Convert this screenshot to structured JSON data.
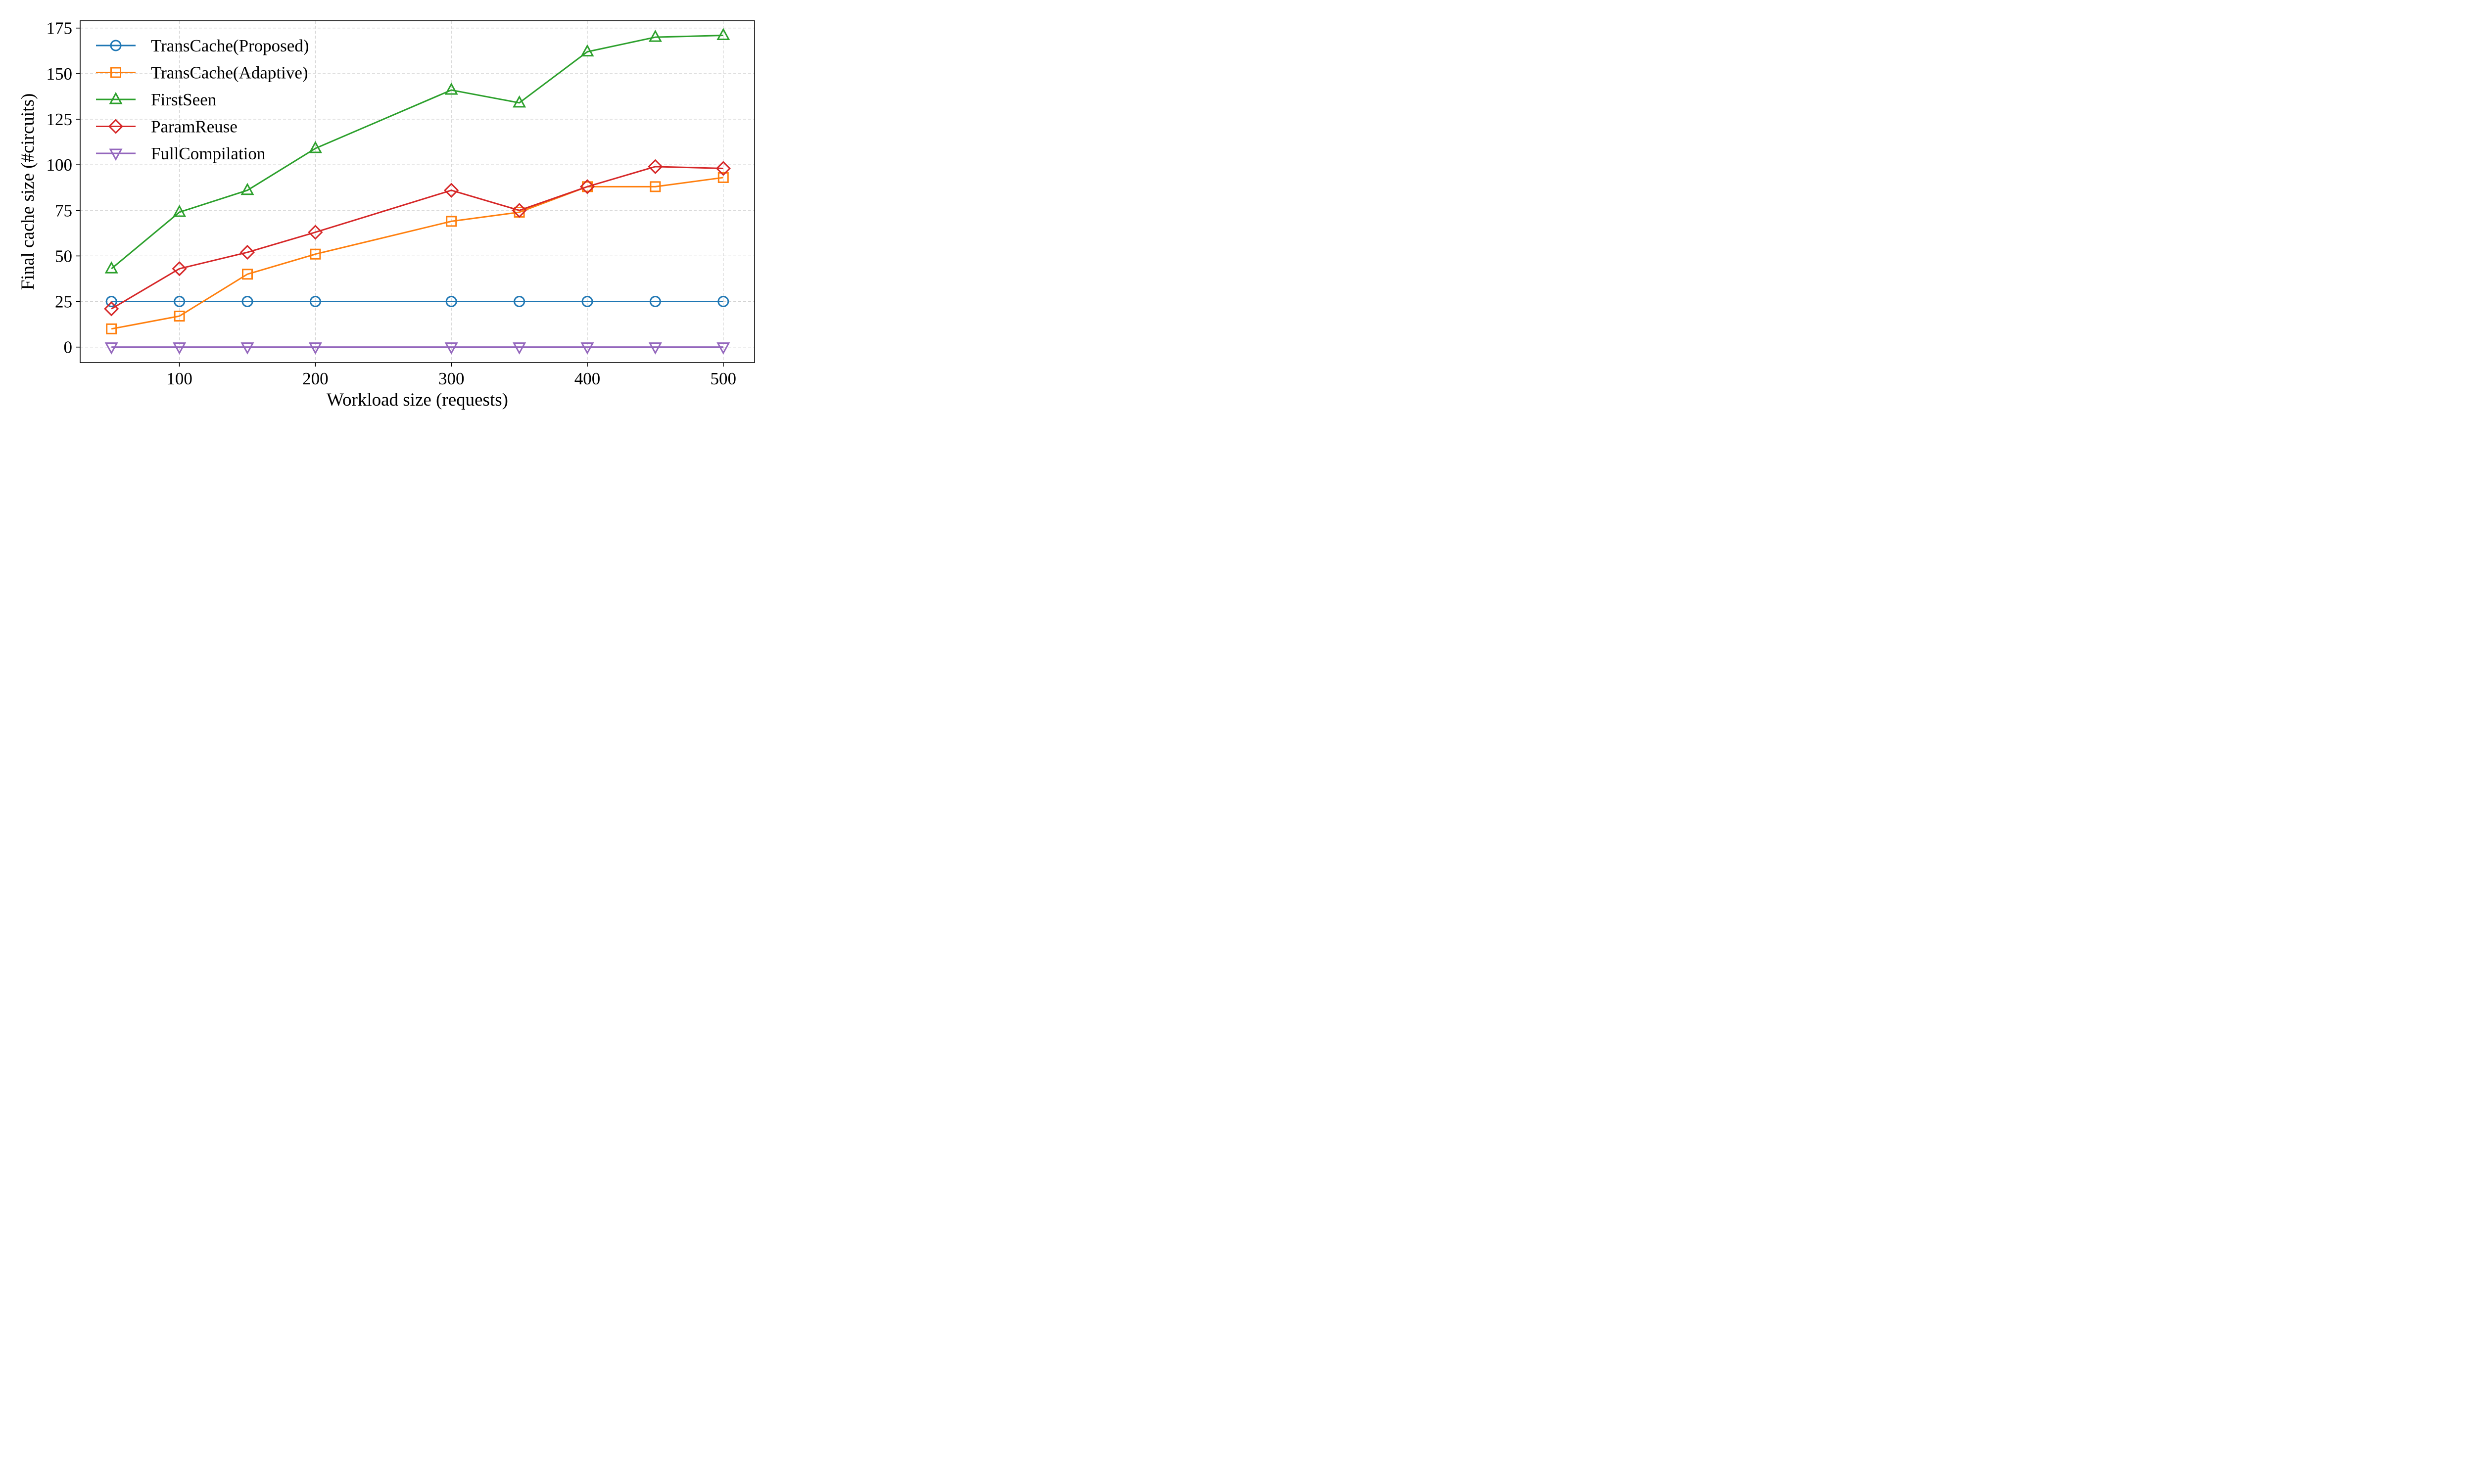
{
  "chart_data": {
    "type": "line",
    "title": "",
    "xlabel": "Workload size (requests)",
    "ylabel": "Final cache size (#circuits)",
    "x": [
      50,
      100,
      150,
      200,
      300,
      350,
      400,
      450,
      500
    ],
    "xlim": [
      27,
      523
    ],
    "ylim": [
      -8.5,
      179
    ],
    "xticks": [
      100,
      200,
      300,
      400,
      500
    ],
    "yticks": [
      0,
      25,
      50,
      75,
      100,
      125,
      150,
      175
    ],
    "grid": true,
    "legend_position": "upper-left",
    "series": [
      {
        "name": "TransCache(Proposed)",
        "color": "#1f77b4",
        "marker": "circle",
        "values": [
          25,
          25,
          25,
          25,
          25,
          25,
          25,
          25,
          25
        ]
      },
      {
        "name": "TransCache(Adaptive)",
        "color": "#ff7f0e",
        "marker": "square",
        "values": [
          10,
          17,
          40,
          51,
          69,
          74,
          88,
          88,
          93
        ]
      },
      {
        "name": "FirstSeen",
        "color": "#2ca02c",
        "marker": "triangle-up",
        "values": [
          43,
          74,
          86,
          109,
          141,
          134,
          162,
          170,
          171
        ]
      },
      {
        "name": "ParamReuse",
        "color": "#d62728",
        "marker": "diamond",
        "values": [
          21,
          43,
          52,
          63,
          86,
          75,
          88,
          99,
          98
        ]
      },
      {
        "name": "FullCompilation",
        "color": "#9467bd",
        "marker": "triangle-down",
        "values": [
          0,
          0,
          0,
          0,
          0,
          0,
          0,
          0,
          0
        ]
      }
    ]
  }
}
